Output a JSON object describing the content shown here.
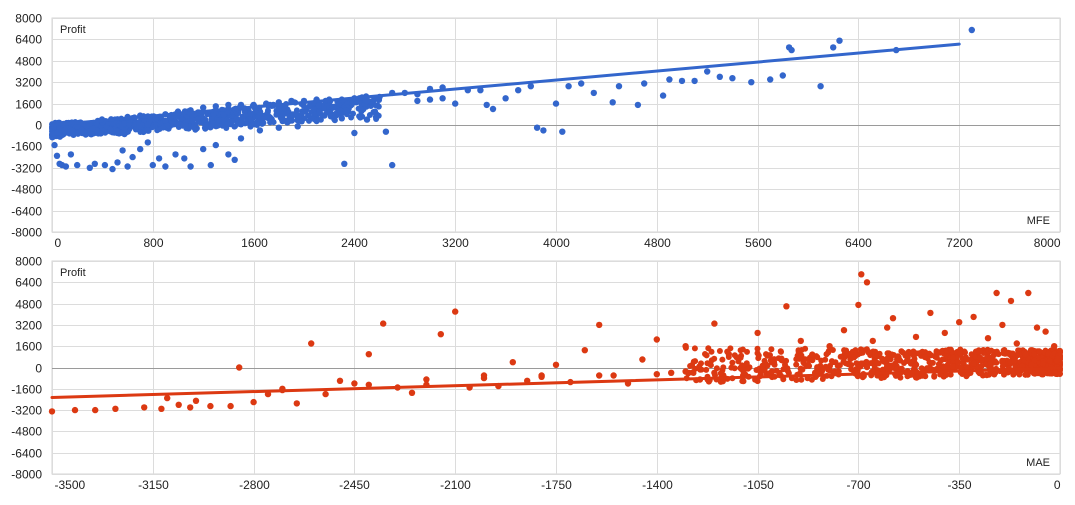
{
  "chart_data": [
    {
      "type": "scatter",
      "ylabel": "Profit",
      "xlabel": "MFE",
      "xlim": [
        0,
        8000
      ],
      "ylim": [
        -8000,
        8000
      ],
      "x_ticks": [
        0,
        800,
        1600,
        2400,
        3200,
        4000,
        4800,
        5600,
        6400,
        7200,
        8000
      ],
      "y_ticks": [
        8000,
        6400,
        4800,
        3200,
        1600,
        0,
        -1600,
        -3200,
        -4800,
        -6400,
        -8000
      ],
      "grid": true,
      "color": "#3366cc",
      "trendline": [
        [
          0,
          0
        ],
        [
          7200,
          6050
        ]
      ],
      "points": [
        [
          20,
          -1500
        ],
        [
          40,
          -2300
        ],
        [
          60,
          -2900
        ],
        [
          80,
          -3000
        ],
        [
          110,
          -3100
        ],
        [
          150,
          -2200
        ],
        [
          200,
          -3000
        ],
        [
          300,
          -3200
        ],
        [
          340,
          -2900
        ],
        [
          420,
          -3000
        ],
        [
          480,
          -3300
        ],
        [
          520,
          -2800
        ],
        [
          560,
          -1900
        ],
        [
          600,
          -3100
        ],
        [
          640,
          -2400
        ],
        [
          700,
          -1800
        ],
        [
          760,
          -1300
        ],
        [
          800,
          -3000
        ],
        [
          850,
          -2500
        ],
        [
          900,
          -3100
        ],
        [
          980,
          -2200
        ],
        [
          1050,
          -2500
        ],
        [
          1100,
          -3100
        ],
        [
          1200,
          -1800
        ],
        [
          1260,
          -3000
        ],
        [
          1300,
          -1500
        ],
        [
          1400,
          -2200
        ],
        [
          1450,
          -2600
        ],
        [
          1500,
          -1000
        ],
        [
          1650,
          -400
        ],
        [
          1800,
          -200
        ],
        [
          1950,
          -100
        ],
        [
          2100,
          300
        ],
        [
          2300,
          500
        ],
        [
          2320,
          -2900
        ],
        [
          2400,
          -600
        ],
        [
          2500,
          400
        ],
        [
          2650,
          -500
        ],
        [
          2700,
          -3000
        ],
        [
          2900,
          1800
        ],
        [
          3000,
          1900
        ],
        [
          3100,
          2000
        ],
        [
          3200,
          1600
        ],
        [
          3300,
          2600
        ],
        [
          3400,
          2600
        ],
        [
          3450,
          1500
        ],
        [
          3500,
          1200
        ],
        [
          3600,
          2000
        ],
        [
          3700,
          2600
        ],
        [
          3800,
          2900
        ],
        [
          3850,
          -200
        ],
        [
          3900,
          -400
        ],
        [
          4000,
          1600
        ],
        [
          4050,
          -500
        ],
        [
          4100,
          2900
        ],
        [
          4200,
          3100
        ],
        [
          4300,
          2400
        ],
        [
          4450,
          1700
        ],
        [
          4500,
          2900
        ],
        [
          4650,
          1500
        ],
        [
          4700,
          3100
        ],
        [
          4850,
          2200
        ],
        [
          4900,
          3400
        ],
        [
          5000,
          3300
        ],
        [
          5100,
          3300
        ],
        [
          5200,
          4000
        ],
        [
          5300,
          3600
        ],
        [
          5400,
          3500
        ],
        [
          5550,
          3200
        ],
        [
          5700,
          3400
        ],
        [
          5800,
          3700
        ],
        [
          5850,
          5800
        ],
        [
          5870,
          5600
        ],
        [
          6100,
          2900
        ],
        [
          6200,
          5800
        ],
        [
          6250,
          6300
        ],
        [
          6700,
          5600
        ],
        [
          7300,
          7100
        ],
        [
          100,
          -400
        ],
        [
          200,
          -100
        ],
        [
          300,
          100
        ],
        [
          400,
          200
        ],
        [
          500,
          400
        ],
        [
          600,
          600
        ],
        [
          700,
          700
        ],
        [
          900,
          800
        ],
        [
          1000,
          1000
        ],
        [
          1100,
          1100
        ],
        [
          1200,
          1300
        ],
        [
          1300,
          1400
        ],
        [
          1400,
          1500
        ],
        [
          1500,
          1500
        ],
        [
          1600,
          1500
        ],
        [
          1700,
          1600
        ],
        [
          1800,
          1700
        ],
        [
          1900,
          1800
        ],
        [
          2000,
          1800
        ],
        [
          2100,
          1900
        ],
        [
          2200,
          1900
        ],
        [
          2300,
          1900
        ],
        [
          2400,
          2000
        ],
        [
          2500,
          1800
        ],
        [
          2600,
          2100
        ],
        [
          2700,
          2400
        ],
        [
          2800,
          2400
        ],
        [
          2900,
          2300
        ],
        [
          3000,
          2700
        ],
        [
          3100,
          2800
        ]
      ]
    },
    {
      "type": "scatter",
      "ylabel": "Profit",
      "xlabel": "MAE",
      "xlim": [
        -3500,
        0
      ],
      "ylim": [
        -8000,
        8000
      ],
      "x_ticks": [
        -3500,
        -3150,
        -2800,
        -2450,
        -2100,
        -1750,
        -1400,
        -1050,
        -700,
        -350,
        0
      ],
      "y_ticks": [
        8000,
        6400,
        4800,
        3200,
        1600,
        0,
        -1600,
        -3200,
        -4800,
        -6400,
        -8000
      ],
      "grid": true,
      "color": "#dc3912",
      "trendline": [
        [
          -3500,
          -2250
        ],
        [
          0,
          -50
        ]
      ],
      "points": [
        [
          -3500,
          -3300
        ],
        [
          -3420,
          -3200
        ],
        [
          -3350,
          -3200
        ],
        [
          -3280,
          -3100
        ],
        [
          -3180,
          -3000
        ],
        [
          -3120,
          -3100
        ],
        [
          -3100,
          -2300
        ],
        [
          -3060,
          -2800
        ],
        [
          -3020,
          -3000
        ],
        [
          -2950,
          -2900
        ],
        [
          -2880,
          -2900
        ],
        [
          -2850,
          0
        ],
        [
          -2800,
          -2600
        ],
        [
          -2750,
          -2000
        ],
        [
          -2700,
          -1600
        ],
        [
          -2650,
          -2700
        ],
        [
          -2600,
          1800
        ],
        [
          -2550,
          -2000
        ],
        [
          -2500,
          -1000
        ],
        [
          -2450,
          -1200
        ],
        [
          -2400,
          1000
        ],
        [
          -2350,
          3300
        ],
        [
          -2300,
          -1500
        ],
        [
          -2250,
          -1900
        ],
        [
          -2200,
          -1300
        ],
        [
          -2150,
          2500
        ],
        [
          -2100,
          4200
        ],
        [
          -2050,
          -1500
        ],
        [
          -2000,
          -600
        ],
        [
          -1950,
          -1400
        ],
        [
          -1900,
          400
        ],
        [
          -1850,
          -1000
        ],
        [
          -1800,
          -600
        ],
        [
          -1750,
          200
        ],
        [
          -1700,
          -1100
        ],
        [
          -1650,
          1300
        ],
        [
          -1600,
          3200
        ],
        [
          -1550,
          -600
        ],
        [
          -1500,
          -1200
        ],
        [
          -1450,
          600
        ],
        [
          -1400,
          2100
        ],
        [
          -1350,
          -400
        ],
        [
          -1300,
          1600
        ],
        [
          -1250,
          -900
        ],
        [
          -1200,
          3300
        ],
        [
          -1150,
          1000
        ],
        [
          -1100,
          -600
        ],
        [
          -1050,
          2600
        ],
        [
          -1000,
          400
        ],
        [
          -950,
          4600
        ],
        [
          -900,
          2000
        ],
        [
          -850,
          -400
        ],
        [
          -800,
          1600
        ],
        [
          -750,
          2800
        ],
        [
          -700,
          4700
        ],
        [
          -690,
          7000
        ],
        [
          -670,
          6400
        ],
        [
          -650,
          2000
        ],
        [
          -600,
          3000
        ],
        [
          -580,
          3700
        ],
        [
          -550,
          -100
        ],
        [
          -500,
          2300
        ],
        [
          -450,
          4100
        ],
        [
          -400,
          2600
        ],
        [
          -350,
          3400
        ],
        [
          -320,
          -100
        ],
        [
          -300,
          3800
        ],
        [
          -280,
          1200
        ],
        [
          -250,
          2200
        ],
        [
          -220,
          5600
        ],
        [
          -200,
          3200
        ],
        [
          -170,
          5000
        ],
        [
          -150,
          1800
        ],
        [
          -110,
          5600
        ],
        [
          -80,
          3000
        ],
        [
          -50,
          2700
        ],
        [
          -20,
          1600
        ],
        [
          -10,
          500
        ],
        [
          -3000,
          -2500
        ],
        [
          -2700,
          -1700
        ],
        [
          -2400,
          -1300
        ],
        [
          -2200,
          -900
        ],
        [
          -2000,
          -800
        ],
        [
          -1800,
          -700
        ],
        [
          -1600,
          -600
        ],
        [
          -1400,
          -500
        ],
        [
          -1300,
          -300
        ],
        [
          -1200,
          -400
        ],
        [
          -1100,
          -200
        ],
        [
          -1000,
          -300
        ],
        [
          -900,
          -100
        ],
        [
          -800,
          -200
        ],
        [
          -700,
          0
        ],
        [
          -600,
          100
        ],
        [
          -500,
          200
        ],
        [
          -400,
          0
        ],
        [
          -300,
          300
        ],
        [
          -200,
          400
        ],
        [
          -100,
          200
        ],
        [
          -60,
          -300
        ],
        [
          -30,
          0
        ]
      ]
    }
  ]
}
